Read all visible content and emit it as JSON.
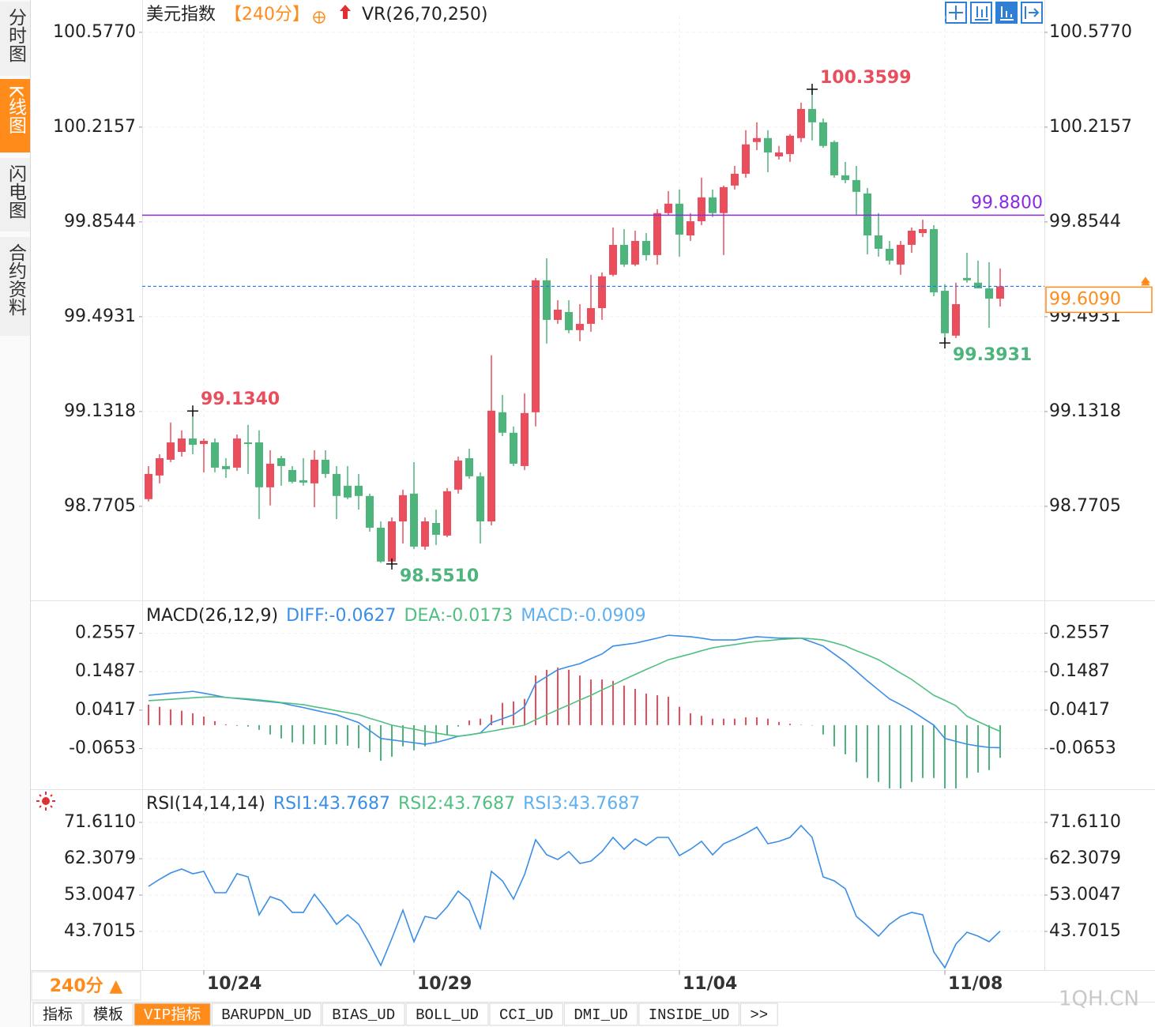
{
  "sidebar_tabs": [
    "分时图",
    "K线图",
    "闪电图",
    "合约资料"
  ],
  "header": {
    "title": "美元指数",
    "period": "【240分】",
    "indicator": "VR(26,70,250)"
  },
  "chart_data": [
    {
      "type": "candlestick",
      "categories": [
        null,
        null,
        null,
        null,
        null,
        "10/24",
        null,
        null,
        null,
        null,
        null,
        null,
        null,
        null,
        null,
        null,
        null,
        null,
        null,
        null,
        null,
        null,
        null,
        null,
        "10/29",
        null,
        null,
        null,
        null,
        null,
        null,
        null,
        null,
        null,
        null,
        null,
        null,
        null,
        null,
        null,
        null,
        null,
        null,
        null,
        null,
        null,
        null,
        null,
        "11/04",
        null,
        null,
        null,
        null,
        null,
        null,
        null,
        null,
        null,
        null,
        null,
        null,
        null,
        null,
        null,
        null,
        null,
        null,
        null,
        null,
        null,
        null,
        null,
        "11/08",
        null,
        null,
        null,
        null,
        null
      ],
      "open": [
        98.798,
        98.888,
        98.948,
        98.978,
        99.029,
        99.008,
        99.014,
        98.924,
        98.918,
        99.014,
        99.014,
        98.843,
        98.954,
        98.909,
        98.87,
        98.858,
        98.948,
        98.894,
        98.849,
        98.849,
        98.81,
        98.689,
        98.56,
        98.713,
        98.819,
        98.617,
        98.707,
        98.659,
        98.834,
        98.954,
        98.885,
        98.713,
        99.129,
        99.051,
        98.924,
        99.129,
        99.632,
        99.481,
        99.511,
        99.442,
        99.466,
        99.526,
        99.653,
        99.767,
        99.692,
        99.782,
        99.728,
        99.888,
        99.924,
        99.803,
        99.857,
        99.948,
        99.888,
        99.993,
        100.038,
        100.159,
        100.174,
        100.104,
        100.113,
        100.174,
        100.285,
        100.234,
        100.159,
        100.032,
        100.014,
        99.963,
        99.803,
        99.752,
        99.692,
        99.767,
        99.812,
        99.827,
        99.592,
        99.421,
        99.641,
        99.623,
        99.601,
        99.562
      ],
      "close": [
        98.894,
        98.954,
        99.014,
        99.029,
        99.005,
        99.02,
        98.918,
        98.912,
        99.029,
        99.008,
        98.843,
        98.933,
        98.924,
        98.864,
        98.861,
        98.948,
        98.894,
        98.81,
        98.804,
        98.81,
        98.689,
        98.56,
        98.713,
        98.813,
        98.617,
        98.713,
        98.662,
        98.828,
        98.945,
        98.885,
        98.713,
        99.135,
        99.051,
        98.933,
        99.126,
        99.632,
        99.481,
        99.52,
        99.442,
        99.466,
        99.526,
        99.647,
        99.767,
        99.692,
        99.782,
        99.728,
        99.888,
        99.924,
        99.806,
        99.857,
        99.948,
        99.888,
        99.987,
        100.038,
        100.15,
        100.174,
        100.119,
        100.119,
        100.183,
        100.285,
        100.234,
        100.144,
        100.032,
        100.014,
        99.969,
        99.803,
        99.752,
        99.707,
        99.767,
        99.821,
        99.827,
        99.586,
        99.43,
        99.541,
        99.632,
        99.601,
        99.562,
        99.609
      ],
      "high": [
        98.924,
        98.969,
        99.09,
        99.06,
        99.134,
        99.029,
        99.029,
        98.954,
        99.044,
        99.081,
        99.06,
        98.984,
        98.963,
        98.924,
        98.954,
        98.984,
        98.984,
        98.924,
        98.924,
        98.894,
        98.819,
        98.713,
        98.728,
        98.834,
        98.939,
        98.728,
        98.758,
        98.84,
        98.96,
        98.99,
        98.9,
        99.346,
        99.195,
        99.075,
        99.201,
        99.641,
        99.716,
        99.556,
        99.556,
        99.541,
        99.653,
        99.662,
        99.833,
        99.827,
        99.821,
        99.812,
        99.903,
        99.972,
        99.978,
        99.888,
        100.023,
        99.978,
        99.993,
        100.068,
        100.204,
        100.234,
        100.204,
        100.144,
        100.189,
        100.309,
        100.3599,
        100.249,
        100.165,
        100.083,
        100.068,
        99.984,
        99.888,
        99.782,
        99.782,
        99.833,
        99.863,
        99.842,
        99.617,
        99.623,
        99.737,
        99.707,
        99.701,
        99.677
      ],
      "low": [
        98.789,
        98.858,
        98.939,
        98.96,
        98.969,
        98.9,
        98.9,
        98.879,
        98.906,
        98.894,
        98.722,
        98.774,
        98.849,
        98.858,
        98.849,
        98.767,
        98.879,
        98.722,
        98.798,
        98.758,
        98.674,
        98.555,
        98.551,
        98.629,
        98.608,
        98.605,
        98.623,
        98.653,
        98.819,
        98.876,
        98.629,
        98.698,
        99.038,
        98.924,
        98.909,
        99.075,
        99.391,
        99.466,
        99.43,
        99.4,
        99.436,
        99.481,
        99.647,
        99.683,
        99.686,
        99.707,
        99.692,
        99.882,
        99.722,
        99.782,
        99.842,
        99.873,
        99.728,
        99.978,
        100.023,
        100.128,
        100.044,
        100.092,
        100.083,
        100.159,
        100.165,
        100.137,
        100.023,
        100.002,
        99.882,
        99.731,
        99.722,
        99.692,
        99.653,
        99.737,
        99.797,
        99.571,
        99.3931,
        99.412,
        99.623,
        99.601,
        99.451,
        99.532
      ],
      "up_color": "#ea4d5c",
      "down_color": "#4db47c",
      "ylim": [
        98.418,
        100.64
      ],
      "yticks": [
        {
          "value": 100.577,
          "label": "100.5770"
        },
        100.2157,
        99.8544,
        99.4931,
        99.1318,
        98.7705
      ],
      "lines": [
        {
          "value": 99.88,
          "label": "99.8800",
          "color": "#8a2be2",
          "style": "solid"
        }
      ],
      "current": {
        "value": 99.609,
        "label": "99.6090",
        "color": "#1e78ff",
        "label_color": "#ff8c1a"
      },
      "annotations": [
        {
          "index": 60,
          "value": 100.3599,
          "label": "100.3599",
          "kind": "high",
          "color": "#ea4d5c"
        },
        {
          "index": 4,
          "value": 99.134,
          "label": "99.1340",
          "kind": "high",
          "color": "#ea4d5c"
        },
        {
          "index": 22,
          "value": 98.551,
          "label": "98.5510",
          "kind": "low",
          "color": "#4db47c"
        },
        {
          "index": 72,
          "value": 99.3931,
          "label": "99.3931",
          "kind": "low",
          "color": "#4db47c"
        }
      ]
    },
    {
      "type": "macd",
      "title": "MACD(26,12,9)",
      "series": [
        {
          "name": "DIFF:-0.0627",
          "type": "line",
          "color": "#3a8ee6",
          "values": [
            0.083,
            0.086,
            0.089,
            0.091,
            0.094,
            0.089,
            0.083,
            0.077,
            0.074,
            0.071,
            0.068,
            0.065,
            0.062,
            0.055,
            0.049,
            0.042,
            0.035,
            0.029,
            0.018,
            0.007,
            -0.015,
            -0.037,
            -0.041,
            -0.045,
            -0.049,
            -0.053,
            -0.048,
            -0.04,
            -0.031,
            -0.027,
            -0.022,
            0.007,
            0.018,
            0.029,
            0.051,
            0.116,
            0.135,
            0.154,
            0.163,
            0.171,
            0.185,
            0.198,
            0.22,
            0.224,
            0.228,
            0.235,
            0.242,
            0.25,
            0.248,
            0.246,
            0.242,
            0.237,
            0.237,
            0.237,
            0.242,
            0.246,
            0.244,
            0.242,
            0.242,
            0.242,
            0.231,
            0.22,
            0.198,
            0.176,
            0.15,
            0.123,
            0.098,
            0.073,
            0.057,
            0.04,
            0.02,
            0.0,
            -0.037,
            -0.045,
            -0.053,
            -0.058,
            -0.062,
            -0.0627
          ]
        },
        {
          "name": "DEA:-0.0173",
          "type": "line",
          "color": "#50c080",
          "values": [
            0.068,
            0.07,
            0.072,
            0.074,
            0.076,
            0.078,
            0.079,
            0.077,
            0.075,
            0.073,
            0.07,
            0.067,
            0.063,
            0.06,
            0.057,
            0.051,
            0.046,
            0.04,
            0.035,
            0.029,
            0.019,
            0.01,
            0.0,
            -0.006,
            -0.011,
            -0.017,
            -0.022,
            -0.027,
            -0.031,
            -0.027,
            -0.022,
            -0.017,
            -0.011,
            -0.006,
            0.0,
            0.015,
            0.029,
            0.043,
            0.056,
            0.07,
            0.083,
            0.098,
            0.112,
            0.127,
            0.141,
            0.155,
            0.168,
            0.182,
            0.19,
            0.198,
            0.207,
            0.215,
            0.22,
            0.224,
            0.229,
            0.233,
            0.235,
            0.238,
            0.24,
            0.242,
            0.24,
            0.237,
            0.229,
            0.22,
            0.207,
            0.195,
            0.182,
            0.164,
            0.145,
            0.127,
            0.105,
            0.083,
            0.069,
            0.054,
            0.025,
            0.01,
            -0.004,
            -0.0173
          ]
        },
        {
          "name": "MACD:-0.0909",
          "type": "histogram",
          "color": "#5fb0ef",
          "up_color": "#ea4d5c",
          "down_color": "#4db47c",
          "values": [
            0.057,
            0.051,
            0.044,
            0.04,
            0.033,
            0.024,
            0.011,
            0.002,
            -0.002,
            -0.004,
            -0.013,
            -0.026,
            -0.037,
            -0.048,
            -0.053,
            -0.053,
            -0.055,
            -0.053,
            -0.057,
            -0.064,
            -0.075,
            -0.099,
            -0.088,
            -0.059,
            -0.07,
            -0.059,
            -0.048,
            -0.026,
            -0.004,
            0.013,
            0.018,
            0.029,
            0.062,
            0.066,
            0.073,
            0.138,
            0.154,
            0.16,
            0.154,
            0.138,
            0.127,
            0.127,
            0.123,
            0.11,
            0.101,
            0.088,
            0.083,
            0.079,
            0.051,
            0.033,
            0.026,
            0.018,
            0.018,
            0.018,
            0.022,
            0.022,
            0.018,
            0.009,
            0.004,
            0.001,
            -0.001,
            -0.026,
            -0.059,
            -0.081,
            -0.103,
            -0.147,
            -0.158,
            -0.176,
            -0.176,
            -0.158,
            -0.147,
            -0.147,
            -0.176,
            -0.176,
            -0.147,
            -0.132,
            -0.125,
            -0.0909
          ]
        }
      ],
      "ylim": [
        -0.176,
        0.336
      ],
      "yticks": [
        0.2557,
        0.1487,
        0.0417,
        -0.0653
      ]
    },
    {
      "type": "line",
      "title": "RSI(14,14,14)",
      "series": [
        {
          "name": "RSI1:43.7687",
          "color": "#3a8ee6",
          "values": [
            55.23,
            57.05,
            58.67,
            59.68,
            58.47,
            59.07,
            53.61,
            53.61,
            58.47,
            57.66,
            47.95,
            52.6,
            51.59,
            48.56,
            48.56,
            53.21,
            49.57,
            45.52,
            47.95,
            45.52,
            40.47,
            35.01,
            41.88,
            49.16,
            41.07,
            47.54,
            46.94,
            49.97,
            54.02,
            51.59,
            44.51,
            59.07,
            56.65,
            51.99,
            58.26,
            67.16,
            63.32,
            62.11,
            64.13,
            61.1,
            61.7,
            64.13,
            67.77,
            64.74,
            67.36,
            65.75,
            67.77,
            67.77,
            63.12,
            64.74,
            66.76,
            63.32,
            66.15,
            67.36,
            68.78,
            70.4,
            66.15,
            66.76,
            67.77,
            70.8,
            67.77,
            57.66,
            56.65,
            54.62,
            47.54,
            45.12,
            42.49,
            45.52,
            47.54,
            48.56,
            47.95,
            38.44,
            34.4,
            40.47,
            43.5,
            42.49,
            41.07,
            43.7687
          ]
        }
      ],
      "legend_extra": [
        {
          "text": "RSI2:43.7687",
          "color": "#50c080"
        },
        {
          "text": "RSI3:43.7687",
          "color": "#5fb0ef"
        }
      ],
      "ylim": [
        33.79,
        79.3
      ],
      "yticks": [
        {
          "value": 71.611,
          "label": "71.6110"
        },
        62.3079,
        53.0047,
        43.7015
      ]
    }
  ],
  "footer": {
    "period": "240分 ▲",
    "tabs": [
      "指标",
      "模板",
      "VIP指标",
      "BARUPDN_UD",
      "BIAS_UD",
      "BOLL_UD",
      "CCI_UD",
      "DMI_UD",
      "INSIDE_UD",
      ">>"
    ],
    "active_tab": 2,
    "watermark": "1QH.CN"
  }
}
